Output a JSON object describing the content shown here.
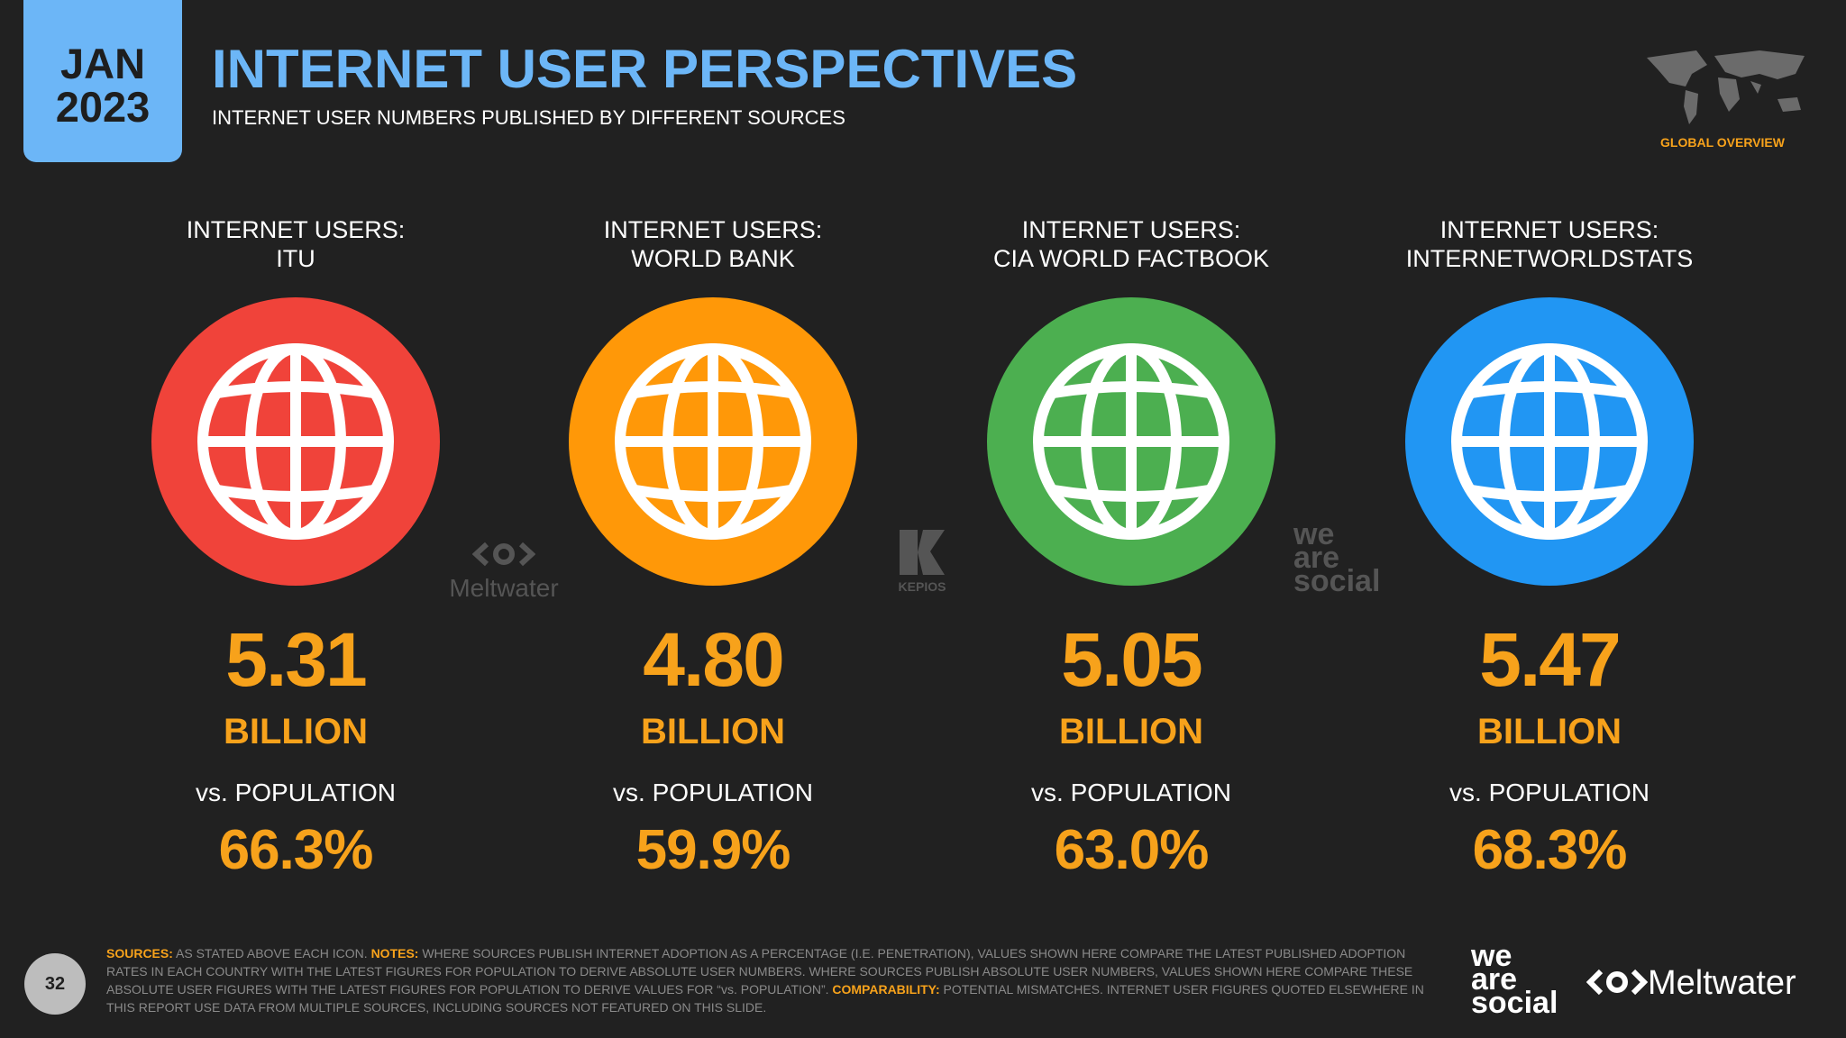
{
  "header": {
    "date_month": "JAN",
    "date_year": "2023",
    "title": "INTERNET USER PERSPECTIVES",
    "subtitle": "INTERNET USER NUMBERS PUBLISHED BY DIFFERENT SOURCES",
    "section": "GLOBAL OVERVIEW"
  },
  "cards": [
    {
      "header_lines": [
        "INTERNET USERS:",
        "ITU"
      ],
      "value": "5.31",
      "unit": "BILLION",
      "population_label": "vs. POPULATION",
      "percentage": "66.3%",
      "color": "#f0433a"
    },
    {
      "header_lines": [
        "INTERNET USERS:",
        "WORLD BANK"
      ],
      "value": "4.80",
      "unit": "BILLION",
      "population_label": "vs. POPULATION",
      "percentage": "59.9%",
      "color": "#ff9808"
    },
    {
      "header_lines": [
        "INTERNET USERS:",
        "CIA WORLD FACTBOOK"
      ],
      "value": "5.05",
      "unit": "BILLION",
      "population_label": "vs. POPULATION",
      "percentage": "63.0%",
      "color": "#4caf50"
    },
    {
      "header_lines": [
        "INTERNET USERS:",
        "INTERNETWORLDSTATS"
      ],
      "value": "5.47",
      "unit": "BILLION",
      "population_label": "vs. POPULATION",
      "percentage": "68.3%",
      "color": "#2196f3"
    }
  ],
  "watermarks": {
    "meltwater": "Meltwater",
    "kepios": "KEPIOS",
    "we_are_social": [
      "we",
      "are",
      "social"
    ]
  },
  "footer": {
    "page_number": "32",
    "sources_label": "SOURCES:",
    "sources_text": "AS STATED ABOVE EACH ICON.",
    "notes_label": "NOTES:",
    "notes_text": "WHERE SOURCES PUBLISH INTERNET ADOPTION AS A PERCENTAGE (I.E. PENETRATION), VALUES SHOWN HERE COMPARE THE LATEST PUBLISHED ADOPTION RATES IN EACH COUNTRY WITH THE LATEST FIGURES FOR POPULATION TO DERIVE ABSOLUTE USER NUMBERS. WHERE SOURCES PUBLISH ABSOLUTE USER NUMBERS, VALUES SHOWN HERE COMPARE THESE ABSOLUTE USER FIGURES WITH THE LATEST FIGURES FOR POPULATION TO DERIVE VALUES FOR “vs. POPULATION”.",
    "comparability_label": "COMPARABILITY:",
    "comparability_text": "POTENTIAL MISMATCHES. INTERNET USER FIGURES QUOTED ELSEWHERE IN THIS REPORT USE DATA FROM MULTIPLE SOURCES, INCLUDING SOURCES NOT FEATURED ON THIS SLIDE.",
    "logo_was": [
      "we",
      "are",
      "social"
    ],
    "logo_meltwater": "Meltwater"
  }
}
